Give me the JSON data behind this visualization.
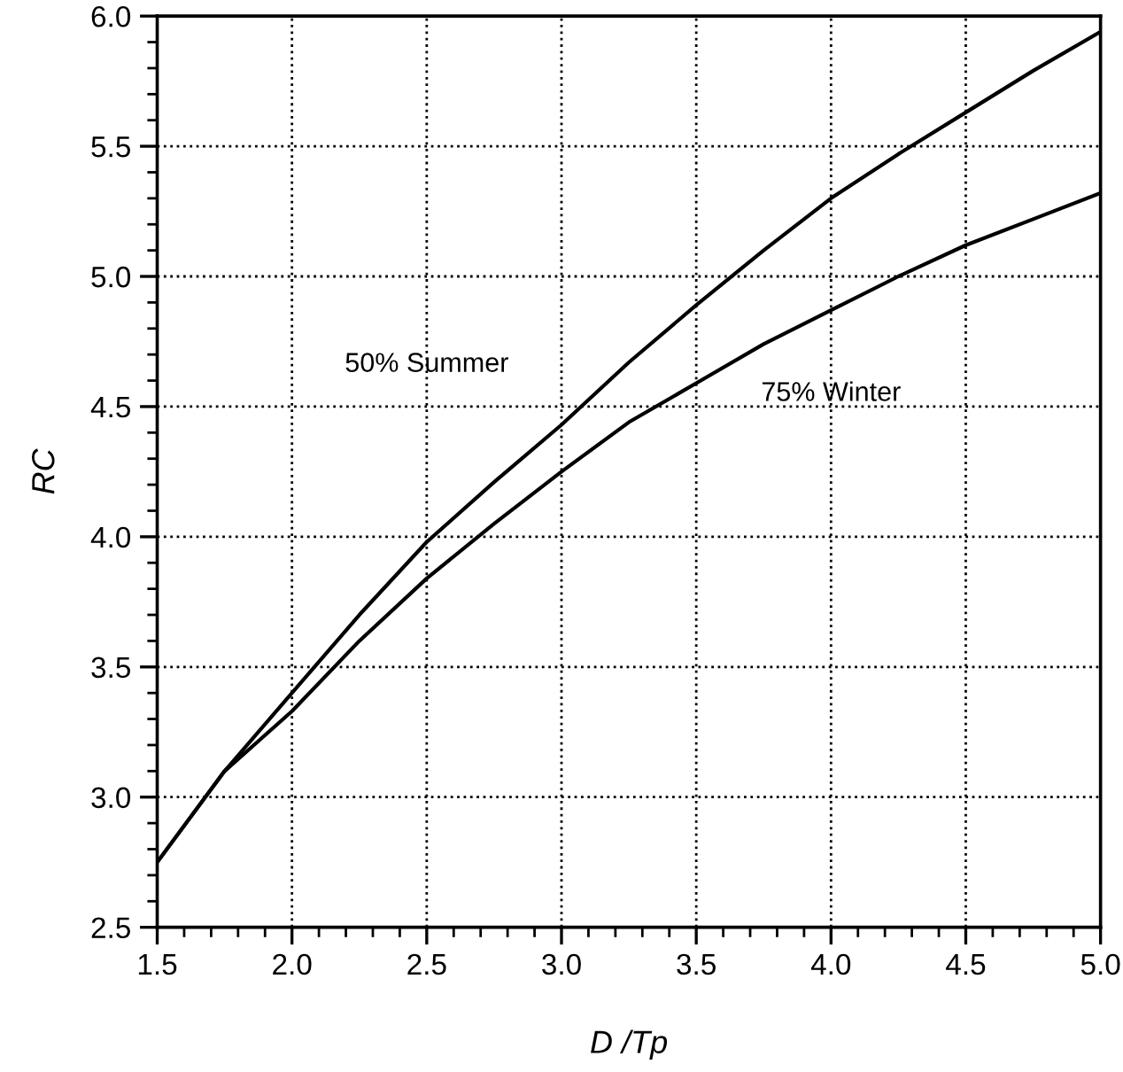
{
  "chart_data": {
    "type": "line",
    "xlabel": "D /Tp",
    "ylabel": "RC",
    "x": [
      1.5,
      1.75,
      2.0,
      2.25,
      2.5,
      2.75,
      3.0,
      3.25,
      3.5,
      3.75,
      4.0,
      4.25,
      4.5,
      4.75,
      5.0
    ],
    "series": [
      {
        "name": "50% Summer",
        "color": "#000000",
        "values": [
          2.75,
          3.1,
          3.4,
          3.7,
          3.98,
          4.21,
          4.43,
          4.67,
          4.89,
          5.1,
          5.3,
          5.47,
          5.63,
          5.79,
          5.94
        ]
      },
      {
        "name": "75% Winter",
        "color": "#000000",
        "values": [
          2.75,
          3.1,
          3.33,
          3.6,
          3.84,
          4.05,
          4.25,
          4.44,
          4.59,
          4.74,
          4.87,
          5.0,
          5.12,
          5.22,
          5.32
        ]
      }
    ],
    "xlim": [
      1.5,
      5.0
    ],
    "ylim": [
      2.5,
      6.0
    ],
    "xticks": [
      {
        "value": 1.5,
        "label": "1.5"
      },
      {
        "value": 2.0,
        "label": "2.0"
      },
      {
        "value": 2.5,
        "label": "2.5"
      },
      {
        "value": 3.0,
        "label": "3.0"
      },
      {
        "value": 3.5,
        "label": "3.5"
      },
      {
        "value": 4.0,
        "label": "4.0"
      },
      {
        "value": 4.5,
        "label": "4.5"
      },
      {
        "value": 5.0,
        "label": "5.0"
      }
    ],
    "yticks": [
      {
        "value": 2.5,
        "label": "2.5"
      },
      {
        "value": 3.0,
        "label": "3.0"
      },
      {
        "value": 3.5,
        "label": "3.5"
      },
      {
        "value": 4.0,
        "label": "4.0"
      },
      {
        "value": 4.5,
        "label": "4.5"
      },
      {
        "value": 5.0,
        "label": "5.0"
      },
      {
        "value": 5.5,
        "label": "5.5"
      },
      {
        "value": 6.0,
        "label": "6.0"
      }
    ],
    "grid": true,
    "legend": false,
    "marker": "none",
    "line_style": "solid"
  }
}
